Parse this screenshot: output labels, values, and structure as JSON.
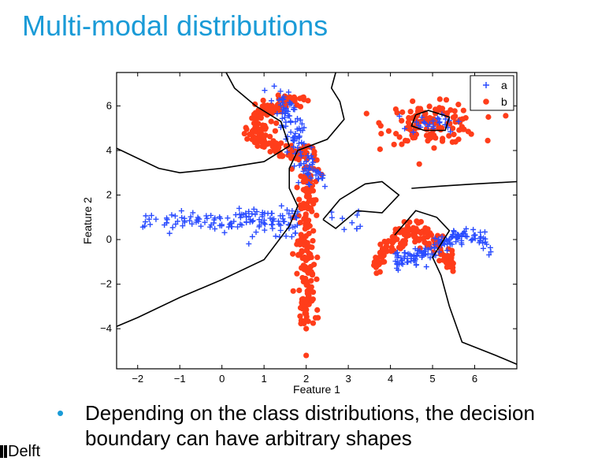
{
  "slide": {
    "title": "Multi-modal distributions",
    "bullet": "Depending on the class distributions, the decision boundary can have arbitrary shapes",
    "logo_text": "Delft",
    "accent_color": "#1a9bd7"
  },
  "chart_data": {
    "type": "scatter",
    "title": "",
    "xlabel": "Feature 1",
    "ylabel": "Feature 2",
    "xlim": [
      -2.5,
      7
    ],
    "ylim": [
      -5.8,
      7.5
    ],
    "xticks": [
      -2,
      -1,
      0,
      1,
      2,
      3,
      4,
      5,
      6
    ],
    "yticks": [
      -4,
      -2,
      0,
      2,
      4,
      6
    ],
    "grid": false,
    "legend_position": "top-right",
    "series": [
      {
        "name": "a",
        "marker": "plus",
        "color": "#2a4cff",
        "clusters": [
          {
            "region": "horizontal band left",
            "x_range": [
              -2.1,
              1.8
            ],
            "y_center": 0.8,
            "approx_points": 140
          },
          {
            "region": "diagonal strip top",
            "x_range": [
              1.0,
              2.4
            ],
            "y_range": [
              2.5,
              7.0
            ],
            "approx_points": 110
          },
          {
            "region": "inside top-right blob",
            "x_center": 5.0,
            "y_center": 5.2,
            "approx_points": 25
          },
          {
            "region": "arc lower right",
            "x_range": [
              4.0,
              6.5
            ],
            "y_range": [
              -1.3,
              1.1
            ],
            "approx_points": 140
          },
          {
            "region": "small cluster center",
            "x_range": [
              2.6,
              3.3
            ],
            "y_range": [
              0.3,
              1.6
            ],
            "approx_points": 10
          }
        ]
      },
      {
        "name": "b",
        "marker": "dot",
        "color": "#ff3d1a",
        "clusters": [
          {
            "region": "crescent top left",
            "x_range": [
              0.3,
              1.8
            ],
            "y_range": [
              3.8,
              6.5
            ],
            "approx_points": 160
          },
          {
            "region": "vertical band",
            "x_center": 2.0,
            "y_range": [
              -4.2,
              4.2
            ],
            "approx_points": 200
          },
          {
            "region": "blob top right",
            "x_center": 5.0,
            "y_center": 5.2,
            "approx_points": 130
          },
          {
            "region": "arc lower center",
            "x_range": [
              3.4,
              5.5
            ],
            "y_range": [
              -1.8,
              0.8
            ],
            "approx_points": 160
          },
          {
            "region": "outliers",
            "points": [
              [
                2.0,
                -5.2
              ],
              [
                2.0,
                -4.0
              ]
            ]
          }
        ]
      }
    ],
    "decision_boundary": "nonlinear curves (black lines) separating classes a and b"
  }
}
